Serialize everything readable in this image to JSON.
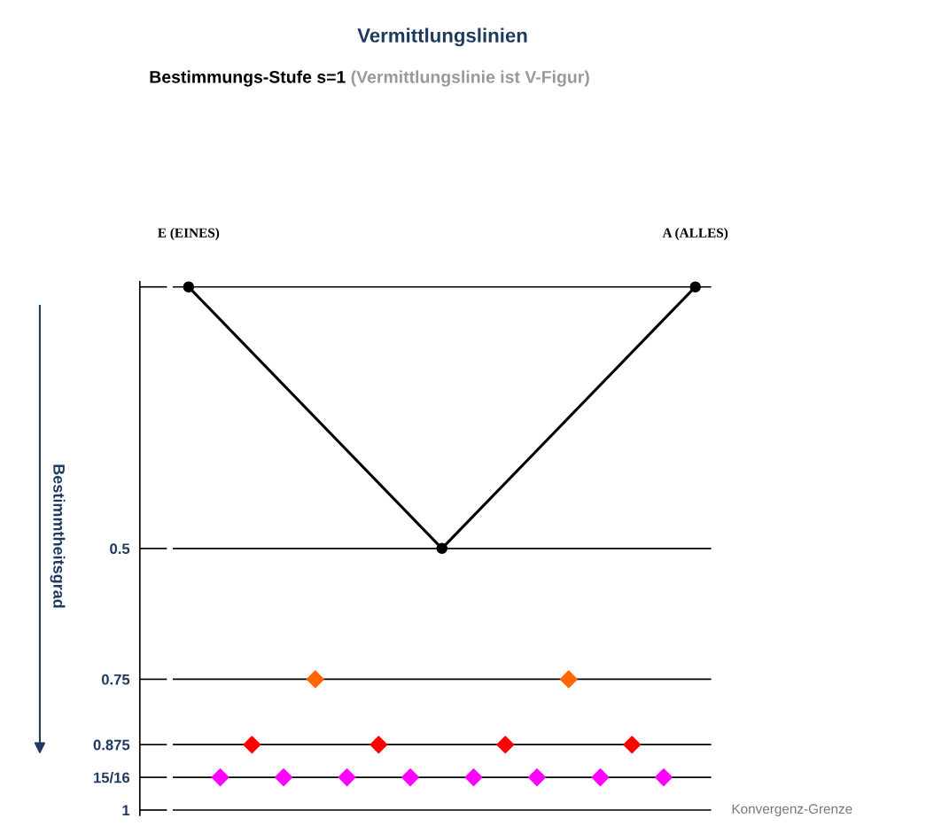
{
  "chart_data": {
    "type": "line",
    "title": "Vermittlungslinien",
    "subtitle": "Bestimmungs-Stufe s=1",
    "ylabel": "Bestimmtheitsgrad",
    "ylim": [
      1.01,
      -0.01
    ],
    "tick_labels": "y",
    "grid": false,
    "categories": [
      null,
      null,
      null,
      null,
      null,
      null,
      null,
      null,
      null,
      null,
      null,
      null,
      null,
      null,
      null,
      null,
      null
    ],
    "yticks": [
      {
        "value": 0,
        "label": null
      },
      0.5,
      0.75,
      0.875,
      {
        "value": 0.9375,
        "label": "15/16"
      },
      1
    ],
    "series": [
      {
        "color": "#000000",
        "marker": "circle",
        "values": [
          0,
          null,
          null,
          null,
          null,
          null,
          null,
          null,
          0.5,
          null,
          null,
          null,
          null,
          null,
          null,
          null,
          0
        ]
      },
      {
        "type": "scatter",
        "color": "#ff6600",
        "marker": "diamond",
        "values": [
          null,
          null,
          null,
          null,
          0.75,
          null,
          null,
          null,
          null,
          null,
          null,
          null,
          0.75,
          null,
          null,
          null,
          null
        ]
      },
      {
        "type": "scatter",
        "color": "#ff0000",
        "marker": "diamond",
        "values": [
          null,
          null,
          0.875,
          null,
          null,
          null,
          0.875,
          null,
          null,
          null,
          0.875,
          null,
          null,
          null,
          0.875,
          null,
          null
        ]
      },
      {
        "type": "scatter",
        "color": "#ff00ff",
        "marker": "diamond",
        "values": [
          null,
          0.9375,
          null,
          0.9375,
          null,
          0.9375,
          null,
          0.9375,
          null,
          0.9375,
          null,
          0.9375,
          null,
          0.9375,
          null,
          0.9375,
          null
        ]
      }
    ],
    "ref_lines": [
      {
        "axis": "y",
        "value": 0,
        "color": "#000000"
      },
      {
        "axis": "y",
        "value": 0.5,
        "color": "#000000"
      },
      {
        "axis": "y",
        "value": 0.75,
        "color": "#000000"
      },
      {
        "axis": "y",
        "value": 0.875,
        "color": "#000000"
      },
      {
        "axis": "y",
        "value": 0.9375,
        "color": "#000000"
      },
      {
        "axis": "y",
        "value": 1,
        "color": "#000000",
        "label": "Konvergenz-Grenze"
      }
    ],
    "annotations": [
      "E (EINES)",
      "A (ALLES)",
      "(Vermittlungslinie ist V-Figur)"
    ]
  }
}
